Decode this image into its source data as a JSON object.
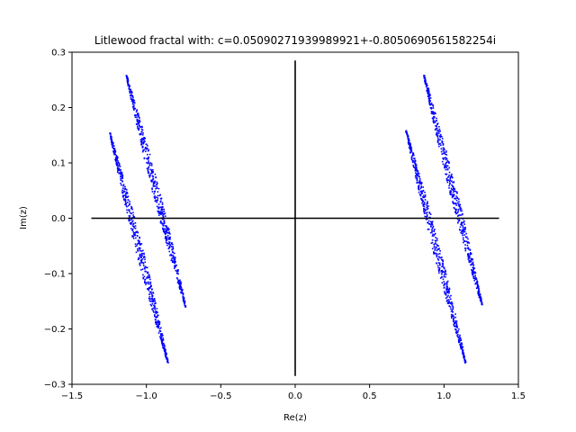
{
  "chart_data": {
    "type": "scatter",
    "title": "Litlewood fractal with: c=0.05090271939989921+-0.8050690561582254i",
    "xlabel": "Re(z)",
    "ylabel": "Im(z)",
    "xlim": [
      -1.5,
      1.5
    ],
    "ylim": [
      -0.3,
      0.3
    ],
    "x_ticks": [
      -1.5,
      -1.0,
      -0.5,
      0.0,
      0.5,
      1.0,
      1.5
    ],
    "y_ticks": [
      -0.3,
      -0.2,
      -0.1,
      0.0,
      0.1,
      0.2,
      0.3
    ],
    "x_tick_labels": [
      "−1.5",
      "−1.0",
      "−0.5",
      "0.0",
      "0.5",
      "1.0",
      "1.5"
    ],
    "y_tick_labels": [
      "−0.3",
      "−0.2",
      "−0.1",
      "0.0",
      "0.1",
      "0.2",
      "0.3"
    ],
    "grid": false,
    "point_color": "#0000ff",
    "line_color": "#000000",
    "reference_lines": [
      {
        "x": [
          -1.37,
          1.37
        ],
        "y": [
          0.0,
          0.0
        ]
      },
      {
        "x": [
          0.0,
          0.0
        ],
        "y": [
          -0.285,
          0.285
        ]
      }
    ],
    "strands": [
      {
        "start": [
          -1.14,
          0.26
        ],
        "end": [
          -0.74,
          -0.16
        ]
      },
      {
        "start": [
          -1.25,
          0.155
        ],
        "end": [
          -0.86,
          -0.26
        ]
      },
      {
        "start": [
          0.86,
          0.26
        ],
        "end": [
          1.25,
          -0.155
        ]
      },
      {
        "start": [
          0.74,
          0.16
        ],
        "end": [
          1.14,
          -0.26
        ]
      }
    ]
  }
}
